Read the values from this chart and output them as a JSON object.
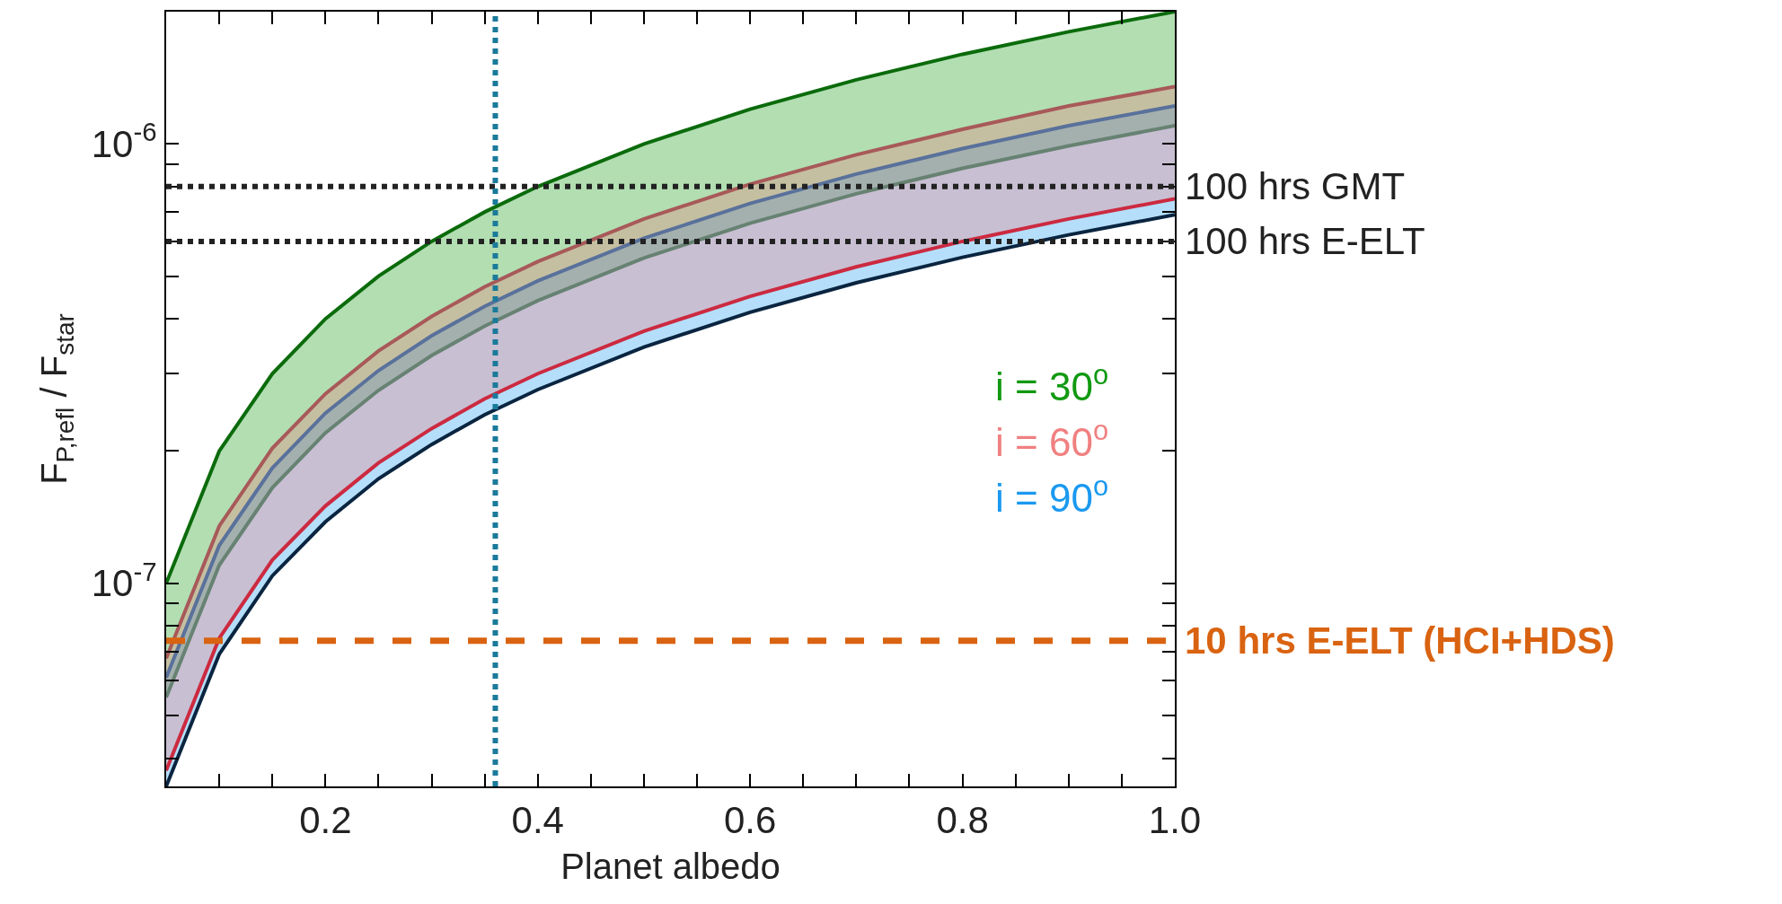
{
  "chart_data": {
    "type": "area",
    "xlabel": "Planet albedo",
    "ylabel": "F$_{P,refl}$ / F$_{star}$",
    "log": "y",
    "x": [
      0.05,
      0.1,
      0.15,
      0.2,
      0.25,
      0.3,
      0.35,
      0.4,
      0.5,
      0.6,
      0.7,
      0.8,
      0.9,
      1.0
    ],
    "xlim": [
      0.05,
      1.0
    ],
    "xticks": [
      {
        "value": 0.1,
        "label": null
      },
      {
        "value": 0.15,
        "label": null
      },
      0.2,
      {
        "value": 0.25,
        "label": null
      },
      {
        "value": 0.3,
        "label": null
      },
      {
        "value": 0.35,
        "label": null
      },
      0.4,
      {
        "value": 0.45,
        "label": null
      },
      {
        "value": 0.5,
        "label": null
      },
      {
        "value": 0.55,
        "label": null
      },
      0.6,
      {
        "value": 0.65,
        "label": null
      },
      {
        "value": 0.7,
        "label": null
      },
      {
        "value": 0.75,
        "label": null
      },
      0.8,
      {
        "value": 0.85,
        "label": null
      },
      {
        "value": 0.9,
        "label": null
      },
      {
        "value": 0.95,
        "label": null
      },
      {
        "value": 1.0,
        "label": "1.0"
      }
    ],
    "ylim": [
      3.45e-08,
      2e-06
    ],
    "yticks": [
      {
        "value": 4e-08,
        "label": null
      },
      {
        "value": 5e-08,
        "label": null
      },
      {
        "value": 6e-08,
        "label": null
      },
      {
        "value": 7e-08,
        "label": null
      },
      {
        "value": 8e-08,
        "label": null
      },
      {
        "value": 9e-08,
        "label": null
      },
      {
        "value": 1e-07,
        "label": "10$^{-7}$"
      },
      {
        "value": 2e-07,
        "label": null
      },
      {
        "value": 3e-07,
        "label": null
      },
      {
        "value": 4e-07,
        "label": null
      },
      {
        "value": 5e-07,
        "label": null
      },
      {
        "value": 6e-07,
        "label": null
      },
      {
        "value": 7e-07,
        "label": null
      },
      {
        "value": 8e-07,
        "label": null
      },
      {
        "value": 9e-07,
        "label": null
      },
      {
        "value": 1e-06,
        "label": "10$^{-6}$"
      }
    ],
    "series": [
      {
        "name": "i = 30$^{o}$",
        "color": "#119911",
        "values": [
          1e-07,
          2e-07,
          3e-07,
          4e-07,
          5e-07,
          6e-07,
          7e-07,
          8e-07,
          1e-06,
          1.2e-06,
          1.4e-06,
          1.6e-06,
          1.8e-06,
          2e-06
        ]
      },
      {
        "type": "line",
        "color": "#2f7a2f",
        "values": [
          5.5e-08,
          1.1e-07,
          1.65e-07,
          2.2e-07,
          2.75e-07,
          3.3e-07,
          3.85e-07,
          4.4e-07,
          5.5e-07,
          6.6e-07,
          7.7e-07,
          8.8e-07,
          9.9e-07,
          1.1e-06
        ]
      },
      {
        "name": "i = 90$^{o}$",
        "color": "#1a99f0",
        "values": [
          6.1e-08,
          1.22e-07,
          1.83e-07,
          2.44e-07,
          3.05e-07,
          3.66e-07,
          4.27e-07,
          4.88e-07,
          6.1e-07,
          7.32e-07,
          8.54e-07,
          9.76e-07,
          1.1e-06,
          1.22e-06
        ]
      },
      {
        "type": "line",
        "color": "#0a2540",
        "values": [
          3.45e-08,
          6.9e-08,
          1.04e-07,
          1.38e-07,
          1.73e-07,
          2.07e-07,
          2.42e-07,
          2.76e-07,
          3.45e-07,
          4.14e-07,
          4.83e-07,
          5.52e-07,
          6.21e-07,
          6.9e-07
        ]
      },
      {
        "name": "i = 60$^{o}$",
        "color": "#f08080",
        "values": [
          6.75e-08,
          1.35e-07,
          2.03e-07,
          2.7e-07,
          3.38e-07,
          4.05e-07,
          4.73e-07,
          5.4e-07,
          6.75e-07,
          8.1e-07,
          9.45e-07,
          1.08e-06,
          1.22e-06,
          1.35e-06
        ]
      },
      {
        "type": "line",
        "color": "#cc2a40",
        "values": [
          3.75e-08,
          7.5e-08,
          1.13e-07,
          1.5e-07,
          1.88e-07,
          2.25e-07,
          2.63e-07,
          3e-07,
          3.75e-07,
          4.5e-07,
          5.25e-07,
          6e-07,
          6.75e-07,
          7.5e-07
        ]
      }
    ],
    "ref_lines": [
      {
        "axis": "y",
        "value": 8e-07,
        "label": "100 hrs GMT",
        "color": "#222222",
        "line_style": "dotted"
      },
      {
        "axis": "y",
        "value": 6e-07,
        "label": "100 hrs E-ELT",
        "color": "#222222",
        "line_style": "dotted"
      },
      {
        "axis": "y",
        "value": 7.4e-08,
        "label": "10 hrs E-ELT (HCI+HDS)",
        "color": "#d96310",
        "line_style": "dashed"
      },
      {
        "axis": "x",
        "value": 0.36,
        "color": "#1a7a9a",
        "line_style": "dotted"
      }
    ]
  }
}
